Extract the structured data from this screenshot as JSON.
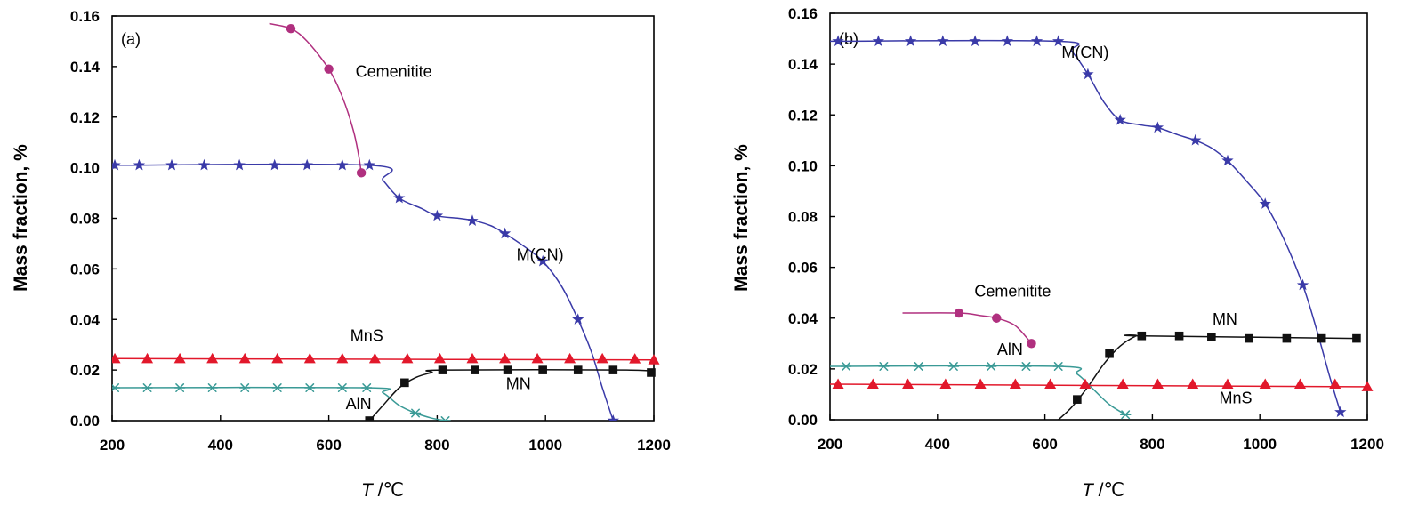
{
  "chart_data": [
    {
      "type": "line",
      "panel_label": "(a)",
      "xlabel_symbol": "T",
      "xlabel_unit": " /℃",
      "ylabel": "Mass fraction, %",
      "xlim": [
        200,
        1200
      ],
      "ylim": [
        0,
        0.16
      ],
      "xticks": [
        "200",
        "400",
        "600",
        "800",
        "1000",
        "1200"
      ],
      "yticks": [
        "0.00",
        "0.02",
        "0.04",
        "0.06",
        "0.08",
        "0.10",
        "0.12",
        "0.14",
        "0.16"
      ],
      "grid": false,
      "series": [
        {
          "name": "Cementite",
          "label": "Cemenitite",
          "color": "#b0307f",
          "marker": "circle",
          "line": [
            [
              490,
              0.157
            ],
            [
              530,
              0.155
            ],
            [
              560,
              0.15
            ],
            [
              600,
              0.139
            ],
            [
              625,
              0.128
            ],
            [
              645,
              0.115
            ],
            [
              655,
              0.105
            ],
            [
              660,
              0.098
            ]
          ],
          "points": [
            [
              530,
              0.155
            ],
            [
              600,
              0.139
            ],
            [
              660,
              0.098
            ]
          ]
        },
        {
          "name": "M(CN)",
          "label": "M(CN)",
          "color": "#3a3aa8",
          "marker": "star",
          "line": [
            [
              200,
              0.101
            ],
            [
              675,
              0.101
            ],
            [
              700,
              0.095
            ],
            [
              730,
              0.088
            ],
            [
              770,
              0.084
            ],
            [
              800,
              0.081
            ],
            [
              840,
              0.08
            ],
            [
              870,
              0.079
            ],
            [
              900,
              0.077
            ],
            [
              925,
              0.074
            ],
            [
              960,
              0.069
            ],
            [
              995,
              0.063
            ],
            [
              1030,
              0.053
            ],
            [
              1060,
              0.04
            ],
            [
              1085,
              0.027
            ],
            [
              1105,
              0.013
            ],
            [
              1125,
              0.0
            ]
          ],
          "points": [
            [
              205,
              0.101
            ],
            [
              250,
              0.101
            ],
            [
              310,
              0.101
            ],
            [
              370,
              0.101
            ],
            [
              435,
              0.101
            ],
            [
              500,
              0.101
            ],
            [
              560,
              0.101
            ],
            [
              625,
              0.101
            ],
            [
              675,
              0.101
            ],
            [
              730,
              0.088
            ],
            [
              800,
              0.081
            ],
            [
              865,
              0.079
            ],
            [
              925,
              0.074
            ],
            [
              995,
              0.063
            ],
            [
              1060,
              0.04
            ],
            [
              1125,
              0.0
            ]
          ]
        },
        {
          "name": "MnS",
          "label": "MnS",
          "color": "#e2182b",
          "marker": "triangle",
          "line": [
            [
              200,
              0.0245
            ],
            [
              1200,
              0.024
            ]
          ],
          "points": [
            [
              205,
              0.0245
            ],
            [
              265,
              0.0245
            ],
            [
              325,
              0.0245
            ],
            [
              385,
              0.0245
            ],
            [
              445,
              0.0245
            ],
            [
              505,
              0.0245
            ],
            [
              565,
              0.0245
            ],
            [
              625,
              0.0245
            ],
            [
              685,
              0.0245
            ],
            [
              745,
              0.0245
            ],
            [
              805,
              0.0245
            ],
            [
              865,
              0.0245
            ],
            [
              925,
              0.0245
            ],
            [
              985,
              0.0245
            ],
            [
              1045,
              0.0245
            ],
            [
              1105,
              0.0245
            ],
            [
              1165,
              0.0244
            ],
            [
              1200,
              0.024
            ]
          ]
        },
        {
          "name": "AlN",
          "label": "AlN",
          "color": "#3a9a96",
          "marker": "asterisk",
          "line": [
            [
              200,
              0.013
            ],
            [
              670,
              0.013
            ],
            [
              700,
              0.011
            ],
            [
              730,
              0.006
            ],
            [
              760,
              0.003
            ],
            [
              790,
              0.001
            ],
            [
              815,
              0.0
            ]
          ],
          "points": [
            [
              205,
              0.013
            ],
            [
              265,
              0.013
            ],
            [
              325,
              0.013
            ],
            [
              385,
              0.013
            ],
            [
              445,
              0.013
            ],
            [
              505,
              0.013
            ],
            [
              565,
              0.013
            ],
            [
              625,
              0.013
            ],
            [
              670,
              0.013
            ],
            [
              760,
              0.003
            ],
            [
              815,
              0.0
            ]
          ]
        },
        {
          "name": "MN",
          "label": "MN",
          "color": "#111111",
          "marker": "square",
          "line": [
            [
              675,
              0.0
            ],
            [
              700,
              0.006
            ],
            [
              730,
              0.013
            ],
            [
              760,
              0.017
            ],
            [
              790,
              0.019
            ],
            [
              810,
              0.02
            ],
            [
              1150,
              0.02
            ],
            [
              1200,
              0.019
            ]
          ],
          "points": [
            [
              675,
              0.0
            ],
            [
              740,
              0.015
            ],
            [
              810,
              0.02
            ],
            [
              870,
              0.02
            ],
            [
              930,
              0.02
            ],
            [
              995,
              0.02
            ],
            [
              1060,
              0.02
            ],
            [
              1125,
              0.02
            ],
            [
              1195,
              0.019
            ]
          ]
        }
      ],
      "annotations": [
        {
          "text": "Cemenitite",
          "x": 720,
          "y": 0.136
        },
        {
          "text": "M(CN)",
          "x": 990,
          "y": 0.0635
        },
        {
          "text": "MnS",
          "x": 670,
          "y": 0.0315
        },
        {
          "text": "MN",
          "x": 950,
          "y": 0.0125
        },
        {
          "text": "AlN",
          "x": 655,
          "y": 0.0045
        }
      ]
    },
    {
      "type": "line",
      "panel_label": "(b)",
      "xlabel_symbol": "T",
      "xlabel_unit": " /℃",
      "ylabel": "Mass fraction, %",
      "xlim": [
        200,
        1200
      ],
      "ylim": [
        0,
        0.16
      ],
      "xticks": [
        "200",
        "400",
        "600",
        "800",
        "1000",
        "1200"
      ],
      "yticks": [
        "0.00",
        "0.02",
        "0.04",
        "0.06",
        "0.08",
        "0.10",
        "0.12",
        "0.14",
        "0.16"
      ],
      "grid": false,
      "series": [
        {
          "name": "M(CN)",
          "label": "M(CN)",
          "color": "#3a3aa8",
          "marker": "star",
          "line": [
            [
              200,
              0.149
            ],
            [
              625,
              0.149
            ],
            [
              650,
              0.145
            ],
            [
              680,
              0.136
            ],
            [
              710,
              0.125
            ],
            [
              740,
              0.118
            ],
            [
              780,
              0.116
            ],
            [
              810,
              0.115
            ],
            [
              850,
              0.112
            ],
            [
              880,
              0.11
            ],
            [
              910,
              0.107
            ],
            [
              940,
              0.102
            ],
            [
              975,
              0.094
            ],
            [
              1010,
              0.085
            ],
            [
              1045,
              0.071
            ],
            [
              1080,
              0.053
            ],
            [
              1105,
              0.036
            ],
            [
              1130,
              0.017
            ],
            [
              1150,
              0.003
            ]
          ],
          "points": [
            [
              215,
              0.149
            ],
            [
              290,
              0.149
            ],
            [
              350,
              0.149
            ],
            [
              410,
              0.149
            ],
            [
              470,
              0.149
            ],
            [
              530,
              0.149
            ],
            [
              585,
              0.149
            ],
            [
              625,
              0.149
            ],
            [
              680,
              0.136
            ],
            [
              740,
              0.118
            ],
            [
              810,
              0.115
            ],
            [
              880,
              0.11
            ],
            [
              940,
              0.102
            ],
            [
              1010,
              0.085
            ],
            [
              1080,
              0.053
            ],
            [
              1150,
              0.003
            ]
          ]
        },
        {
          "name": "Cementite",
          "label": "Cemenitite",
          "color": "#b0307f",
          "marker": "circle",
          "line": [
            [
              335,
              0.042
            ],
            [
              440,
              0.042
            ],
            [
              480,
              0.041
            ],
            [
              510,
              0.04
            ],
            [
              545,
              0.037
            ],
            [
              575,
              0.03
            ]
          ],
          "points": [
            [
              440,
              0.042
            ],
            [
              510,
              0.04
            ],
            [
              575,
              0.03
            ]
          ]
        },
        {
          "name": "MN",
          "label": "MN",
          "color": "#111111",
          "marker": "square",
          "line": [
            [
              625,
              0.0
            ],
            [
              650,
              0.005
            ],
            [
              680,
              0.013
            ],
            [
              710,
              0.022
            ],
            [
              740,
              0.029
            ],
            [
              770,
              0.033
            ],
            [
              780,
              0.033
            ],
            [
              1180,
              0.032
            ]
          ],
          "points": [
            [
              660,
              0.008
            ],
            [
              720,
              0.026
            ],
            [
              780,
              0.033
            ],
            [
              850,
              0.033
            ],
            [
              910,
              0.0325
            ],
            [
              980,
              0.032
            ],
            [
              1050,
              0.032
            ],
            [
              1115,
              0.032
            ],
            [
              1180,
              0.032
            ]
          ]
        },
        {
          "name": "AlN",
          "label": "AlN",
          "color": "#3a9a96",
          "marker": "asterisk",
          "line": [
            [
              200,
              0.021
            ],
            [
              625,
              0.021
            ],
            [
              660,
              0.018
            ],
            [
              690,
              0.012
            ],
            [
              720,
              0.006
            ],
            [
              750,
              0.002
            ]
          ],
          "points": [
            [
              230,
              0.021
            ],
            [
              300,
              0.021
            ],
            [
              365,
              0.021
            ],
            [
              430,
              0.021
            ],
            [
              500,
              0.021
            ],
            [
              565,
              0.021
            ],
            [
              625,
              0.021
            ],
            [
              750,
              0.002
            ]
          ]
        },
        {
          "name": "MnS",
          "label": "MnS",
          "color": "#e2182b",
          "marker": "triangle",
          "line": [
            [
              200,
              0.014
            ],
            [
              1200,
              0.013
            ]
          ],
          "points": [
            [
              215,
              0.014
            ],
            [
              280,
              0.014
            ],
            [
              345,
              0.014
            ],
            [
              415,
              0.014
            ],
            [
              480,
              0.014
            ],
            [
              545,
              0.014
            ],
            [
              610,
              0.014
            ],
            [
              675,
              0.014
            ],
            [
              745,
              0.014
            ],
            [
              810,
              0.014
            ],
            [
              875,
              0.014
            ],
            [
              940,
              0.014
            ],
            [
              1010,
              0.014
            ],
            [
              1075,
              0.014
            ],
            [
              1140,
              0.014
            ],
            [
              1200,
              0.013
            ]
          ]
        }
      ],
      "annotations": [
        {
          "text": "M(CN)",
          "x": 675,
          "y": 0.1425
        },
        {
          "text": "Cemenitite",
          "x": 540,
          "y": 0.0485
        },
        {
          "text": "MN",
          "x": 935,
          "y": 0.0375
        },
        {
          "text": "AlN",
          "x": 535,
          "y": 0.0255
        },
        {
          "text": "MnS",
          "x": 955,
          "y": 0.0065
        }
      ]
    }
  ]
}
